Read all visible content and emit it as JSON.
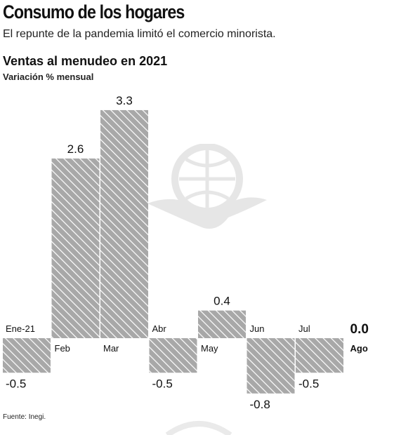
{
  "header": {
    "title": "Consumo de los hogares",
    "subtitle": "El repunte de la pandemia limitó el comercio minorista."
  },
  "chart_data": {
    "type": "bar",
    "title": "Ventas al menudeo en 2021",
    "subtitle": "Variación % mensual",
    "categories": [
      "Ene-21",
      "Feb",
      "Mar",
      "Abr",
      "May",
      "Jun",
      "Jul",
      "Ago"
    ],
    "values": [
      -0.5,
      2.6,
      3.3,
      -0.5,
      0.4,
      -0.8,
      -0.5,
      0.0
    ],
    "value_labels": [
      "-0.5",
      "2.6",
      "3.3",
      "-0.5",
      "0.4",
      "-0.8",
      "-0.5",
      "0.0"
    ],
    "highlight_index": 7,
    "ylim": [
      -0.8,
      3.3
    ],
    "grid": false,
    "legend": "none",
    "bar_pattern": "diagonal-hatch",
    "colors": {
      "bar_fill": "#a8a8a8",
      "hatch": "#ffffff",
      "text": "#111111"
    }
  },
  "footer": {
    "source": "Fuente: Inegi."
  }
}
